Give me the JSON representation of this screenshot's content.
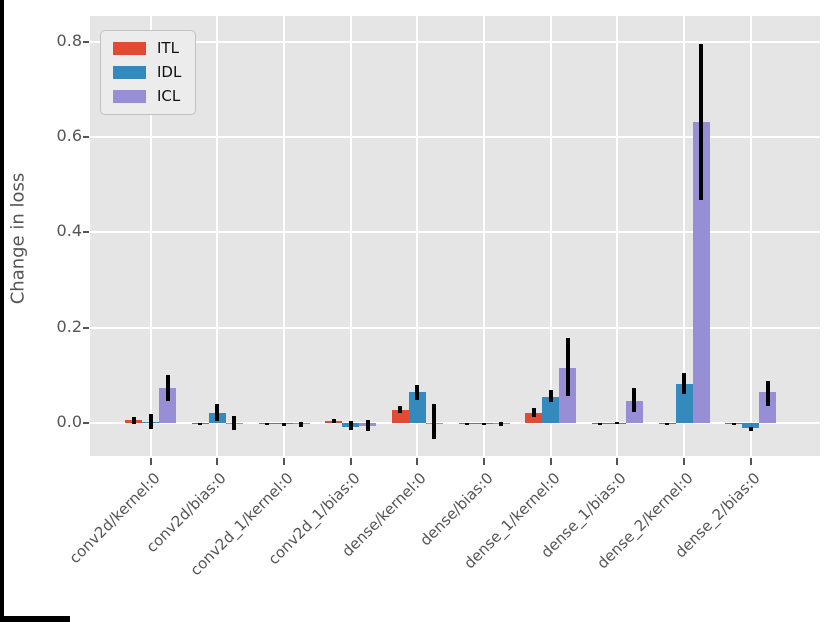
{
  "figure": {
    "plot_background": "#e5e5e5",
    "grid_color": "#ffffff",
    "tick_text_color": "#555555",
    "errorbar_color": "#000000",
    "window_edge_color": "#000000"
  },
  "chart_data": {
    "type": "bar",
    "title": "",
    "xlabel": "",
    "ylabel": "Change in loss",
    "grid": true,
    "legend_position": "upper left",
    "yticks": [
      0.0,
      0.2,
      0.4,
      0.6,
      0.8
    ],
    "ylim": [
      -0.069,
      0.854
    ],
    "categories": [
      "conv2d/kernel:0",
      "conv2d/bias:0",
      "conv2d_1/kernel:0",
      "conv2d_1/bias:0",
      "dense/kernel:0",
      "dense/bias:0",
      "dense_1/kernel:0",
      "dense_1/bias:0",
      "dense_2/kernel:0",
      "dense_2/bias:0"
    ],
    "series": [
      {
        "name": "ITL",
        "color": "#e24a33",
        "values": [
          0.006,
          -0.002,
          -0.001,
          0.004,
          0.027,
          -0.002,
          0.022,
          -0.002,
          -0.001,
          -0.001
        ],
        "error_low": [
          -0.003,
          -0.004,
          -0.002,
          0.001,
          0.02,
          -0.004,
          0.013,
          -0.004,
          -0.002,
          -0.002
        ],
        "error_high": [
          0.013,
          0.001,
          0.001,
          0.008,
          0.036,
          0.001,
          0.032,
          0.0,
          0.0,
          0.0
        ]
      },
      {
        "name": "IDL",
        "color": "#348abd",
        "values": [
          0.003,
          0.022,
          -0.003,
          -0.008,
          0.064,
          -0.003,
          0.055,
          0.0,
          0.081,
          -0.011
        ],
        "error_low": [
          -0.013,
          0.004,
          -0.006,
          -0.014,
          0.048,
          -0.005,
          0.043,
          -0.003,
          0.061,
          -0.017
        ],
        "error_high": [
          0.019,
          0.039,
          0.001,
          0.004,
          0.08,
          0.0,
          0.069,
          0.003,
          0.104,
          -0.008
        ]
      },
      {
        "name": "ICL",
        "color": "#988ed5",
        "values": [
          0.074,
          -0.002,
          -0.003,
          -0.006,
          -0.003,
          -0.003,
          0.115,
          0.047,
          0.632,
          0.064
        ],
        "error_low": [
          0.047,
          -0.015,
          -0.008,
          -0.017,
          -0.034,
          -0.007,
          0.057,
          0.023,
          0.467,
          0.036
        ],
        "error_high": [
          0.101,
          0.015,
          0.002,
          0.006,
          0.04,
          0.002,
          0.178,
          0.073,
          0.795,
          0.089
        ]
      }
    ]
  }
}
